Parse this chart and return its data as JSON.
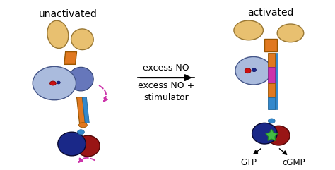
{
  "background_color": "#ffffff",
  "title_left": "unactivated",
  "title_right": "activated",
  "arrow_text1": "excess NO",
  "arrow_text2": "excess NO +\nstimulator",
  "label_gtp": "GTP",
  "label_cgmp": "cGMP",
  "colors": {
    "tan": "#E8C070",
    "orange": "#E07820",
    "light_blue": "#8899CC",
    "light_blue2": "#AABBDD",
    "medium_blue": "#6677BB",
    "dark_blue": "#1A2888",
    "red_brown": "#991515",
    "bright_red": "#CC1010",
    "purple_magenta": "#CC33AA",
    "cyan_blue": "#3388CC",
    "teal_blue": "#2266AA",
    "green_star": "#44BB44",
    "navy": "#0A1060"
  }
}
